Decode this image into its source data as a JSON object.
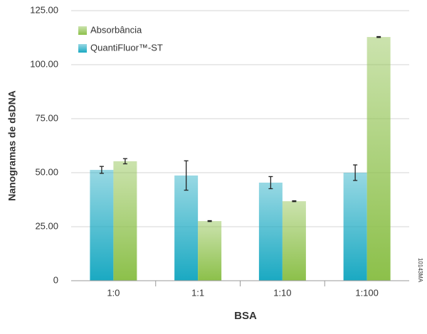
{
  "chart_data": {
    "type": "bar",
    "y_label": "Nanogramas de dsDNA",
    "x_label": "BSA",
    "figure_id": "10143MA",
    "categories": [
      "1:0",
      "1:1",
      "1:10",
      "1:100"
    ],
    "series": [
      {
        "name": "QuantiFluor™-ST",
        "color": "#1aa9c2",
        "values": [
          51.3,
          48.7,
          45.4,
          50
        ],
        "errors": [
          1.6,
          6.8,
          2.8,
          3.6
        ]
      },
      {
        "name": "Absorbância",
        "color": "#8cc04a",
        "values": [
          55.3,
          27.6,
          36.8,
          112.8
        ],
        "errors": [
          1.2,
          0.2,
          0.2,
          0.2
        ]
      }
    ],
    "ylim": [
      0,
      125
    ],
    "yticks": [
      0,
      {
        "value": 25,
        "label": "25.00"
      },
      {
        "value": 50,
        "label": "50.00"
      },
      {
        "value": 75,
        "label": "75.00"
      },
      {
        "value": 100,
        "label": "100.00"
      },
      {
        "value": 125,
        "label": "125.00"
      }
    ],
    "grid": true
  }
}
